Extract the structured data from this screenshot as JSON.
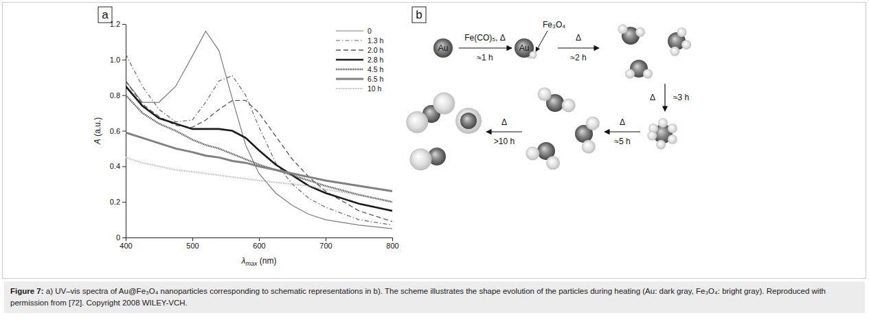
{
  "panel_labels": [
    "a",
    "b"
  ],
  "chart_data": {
    "type": "line",
    "x_label": "λmax (nm)",
    "y_label": "A (a.u.)",
    "x": [
      400,
      425,
      450,
      475,
      500,
      520,
      540,
      560,
      580,
      600,
      625,
      650,
      675,
      700,
      750,
      800
    ],
    "series": [
      {
        "name": "0",
        "color": "#7a7a7a",
        "line_style": "solid",
        "values": [
          0.88,
          0.76,
          0.76,
          0.85,
          1.02,
          1.16,
          1.05,
          0.78,
          0.52,
          0.36,
          0.25,
          0.18,
          0.13,
          0.1,
          0.07,
          0.05
        ]
      },
      {
        "name": "1.3 h",
        "color": "#666666",
        "line_style": "dash-dot",
        "values": [
          1.03,
          0.85,
          0.72,
          0.65,
          0.66,
          0.76,
          0.88,
          0.91,
          0.8,
          0.62,
          0.42,
          0.3,
          0.22,
          0.17,
          0.1,
          0.07
        ]
      },
      {
        "name": "2.0 h",
        "color": "#555555",
        "line_style": "dashed",
        "values": [
          0.88,
          0.75,
          0.68,
          0.63,
          0.62,
          0.66,
          0.72,
          0.77,
          0.77,
          0.7,
          0.57,
          0.44,
          0.34,
          0.26,
          0.15,
          0.09
        ]
      },
      {
        "name": "2.8 h",
        "color": "#1a1a1a",
        "line_style": "bold",
        "values": [
          0.85,
          0.74,
          0.67,
          0.64,
          0.61,
          0.61,
          0.61,
          0.6,
          0.56,
          0.49,
          0.41,
          0.35,
          0.29,
          0.25,
          0.19,
          0.15
        ]
      },
      {
        "name": "4.5 h",
        "color": "#5a5a5a",
        "line_style": "wavy",
        "values": [
          0.8,
          0.7,
          0.64,
          0.6,
          0.55,
          0.52,
          0.5,
          0.47,
          0.44,
          0.41,
          0.38,
          0.35,
          0.32,
          0.29,
          0.24,
          0.2
        ]
      },
      {
        "name": "6.5 h",
        "color": "#808080",
        "line_style": "thick",
        "values": [
          0.59,
          0.56,
          0.53,
          0.5,
          0.48,
          0.46,
          0.45,
          0.43,
          0.42,
          0.4,
          0.38,
          0.36,
          0.34,
          0.32,
          0.29,
          0.26
        ]
      },
      {
        "name": "10 h",
        "color": "#a8a8a8",
        "line_style": "dotted",
        "values": [
          0.45,
          0.42,
          0.4,
          0.38,
          0.37,
          0.36,
          0.35,
          0.34,
          0.33,
          0.32,
          0.31,
          0.3,
          0.29,
          0.27,
          0.24,
          0.2
        ]
      }
    ],
    "xlim": [
      400,
      800
    ],
    "xticks": [
      400,
      500,
      600,
      700,
      800
    ],
    "ylim": [
      0,
      1.2
    ],
    "yticks": [
      0,
      0.2,
      0.4,
      0.6,
      0.8,
      {
        "value": 1,
        "label": "1.0"
      },
      1.2
    ],
    "legend": "upper right",
    "grid": false
  },
  "scheme": {
    "core_labels": [
      "Au",
      "Au"
    ],
    "shell_label": "Fe₃O₄",
    "steps": [
      {
        "above": "Fe(CO)₅, Δ",
        "below": "≈1 h"
      },
      {
        "above": "Δ",
        "below": "≈2 h"
      },
      {
        "above": "Δ",
        "below": "≈3 h"
      },
      {
        "above": "Δ",
        "below": "≈5 h"
      },
      {
        "above": "Δ",
        "below": ">10 h"
      }
    ]
  },
  "caption": {
    "label": "Figure 7:",
    "text": "a) UV–vis spectra of Au@Fe₃O₄ nanoparticles corresponding to schematic representations in b). The scheme illustrates the shape evolution of the particles during heating (Au: dark gray, Fe₃O₄: bright gray). Reproduced with permission from [72]. Copyright 2008 WILEY-VCH."
  }
}
